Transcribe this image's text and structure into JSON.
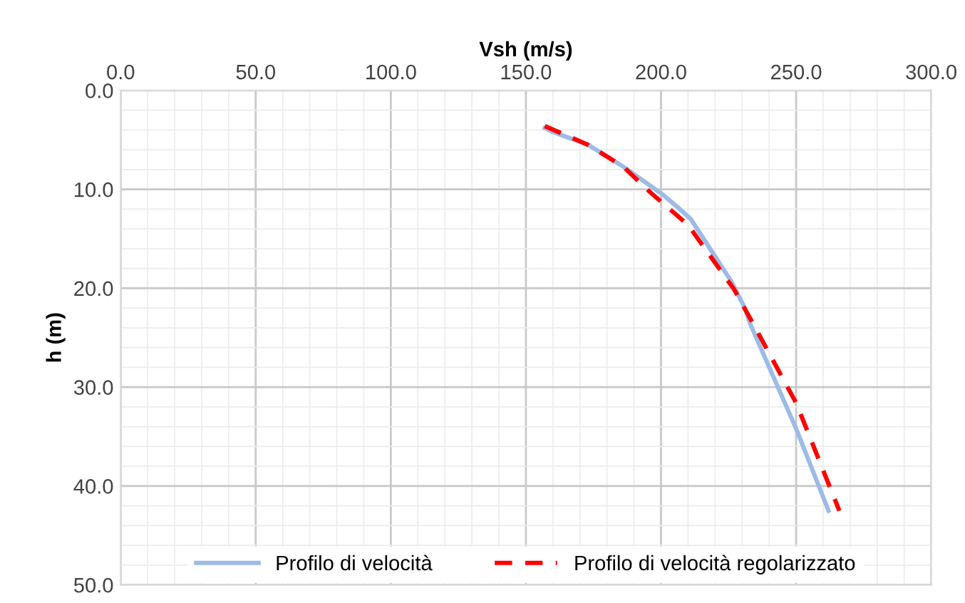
{
  "chart_data": {
    "type": "line",
    "xlabel": "Vsh (m/s)",
    "ylabel": "h (m)",
    "xlim": [
      0,
      300
    ],
    "xticks": [
      {
        "value": 0,
        "label": "0.0"
      },
      {
        "value": 50,
        "label": "50.0"
      },
      {
        "value": 100,
        "label": "100.0"
      },
      {
        "value": 150,
        "label": "150.0"
      },
      {
        "value": 200,
        "label": "200.0"
      },
      {
        "value": 250,
        "label": "250.0"
      },
      {
        "value": 300,
        "label": "300.0"
      }
    ],
    "ylim": [
      50,
      0
    ],
    "yticks": [
      {
        "value": 0,
        "label": "0.0"
      },
      {
        "value": 10,
        "label": "10.0"
      },
      {
        "value": 20,
        "label": "20.0"
      },
      {
        "value": 30,
        "label": "30.0"
      },
      {
        "value": 40,
        "label": "40.0"
      },
      {
        "value": 50,
        "label": "50.0"
      }
    ],
    "grid": true,
    "legend": "bottom",
    "series": [
      {
        "name": "Profilo di velocità",
        "color": "#9dbbe6",
        "line_style": "solid",
        "x": [
          157,
          160,
          173,
          186,
          200,
          207,
          211,
          226,
          231,
          233,
          250,
          262
        ],
        "values": [
          3.8,
          4.2,
          5.5,
          7.7,
          10.4,
          12.0,
          13.0,
          19.3,
          22.0,
          23.6,
          34.2,
          42.5
        ]
      },
      {
        "name": "Profilo di velocità regolarizzato",
        "color": "#ff0000",
        "line_style": "dashed",
        "x": [
          157,
          173,
          186,
          196,
          210,
          227,
          233.5,
          250,
          266
        ],
        "values": [
          3.6,
          5.5,
          7.7,
          10.3,
          13.6,
          20.1,
          23.3,
          31.6,
          42.5
        ]
      }
    ]
  }
}
